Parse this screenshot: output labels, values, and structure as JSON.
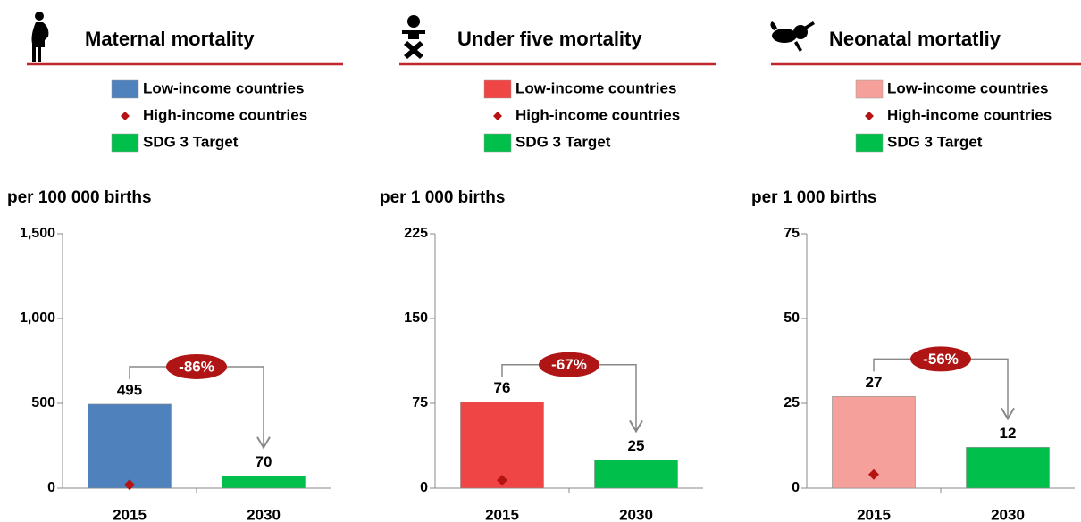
{
  "chart_data": [
    {
      "type": "bar",
      "title": "Maternal mortality",
      "ylabel": "per 100 000 births",
      "categories": [
        "2015",
        "2030"
      ],
      "series": [
        {
          "name": "Low-income countries",
          "color": "#4f81bd",
          "values": [
            495,
            null
          ]
        },
        {
          "name": "High-income countries",
          "color": "#b41414",
          "marker": "diamond",
          "values": [
            20,
            null
          ]
        },
        {
          "name": "SDG 3 Target",
          "color": "#00c04b",
          "values": [
            null,
            70
          ]
        }
      ],
      "ylim": [
        0,
        1500
      ],
      "yticks": [
        0,
        500,
        {
          "value": 1000,
          "label": "1,000"
        },
        {
          "value": 1500,
          "label": "1,500"
        }
      ],
      "annotation": "-86%"
    },
    {
      "type": "bar",
      "title": "Under five mortality",
      "ylabel": "per 1 000 births",
      "categories": [
        "2015",
        "2030"
      ],
      "series": [
        {
          "name": "Low-income countries",
          "color": "#f04545",
          "values": [
            76,
            null
          ]
        },
        {
          "name": "High-income countries",
          "color": "#b41414",
          "marker": "diamond",
          "values": [
            7,
            null
          ]
        },
        {
          "name": "SDG 3 Target",
          "color": "#00c04b",
          "values": [
            null,
            25
          ]
        }
      ],
      "ylim": [
        0,
        225
      ],
      "yticks": [
        0,
        75,
        150,
        225
      ],
      "annotation": "-67%"
    },
    {
      "type": "bar",
      "title": "Neonatal mortatliy",
      "ylabel": "per 1 000 births",
      "categories": [
        "2015",
        "2030"
      ],
      "series": [
        {
          "name": "Low-income countries",
          "color": "#f5a09a",
          "values": [
            27,
            null
          ]
        },
        {
          "name": "High-income countries",
          "color": "#b41414",
          "marker": "diamond",
          "values": [
            4,
            null
          ]
        },
        {
          "name": "SDG 3 Target",
          "color": "#00c04b",
          "values": [
            null,
            12
          ]
        }
      ],
      "ylim": [
        0,
        75
      ],
      "yticks": [
        0,
        25,
        50,
        75
      ],
      "annotation": "-56%"
    }
  ]
}
